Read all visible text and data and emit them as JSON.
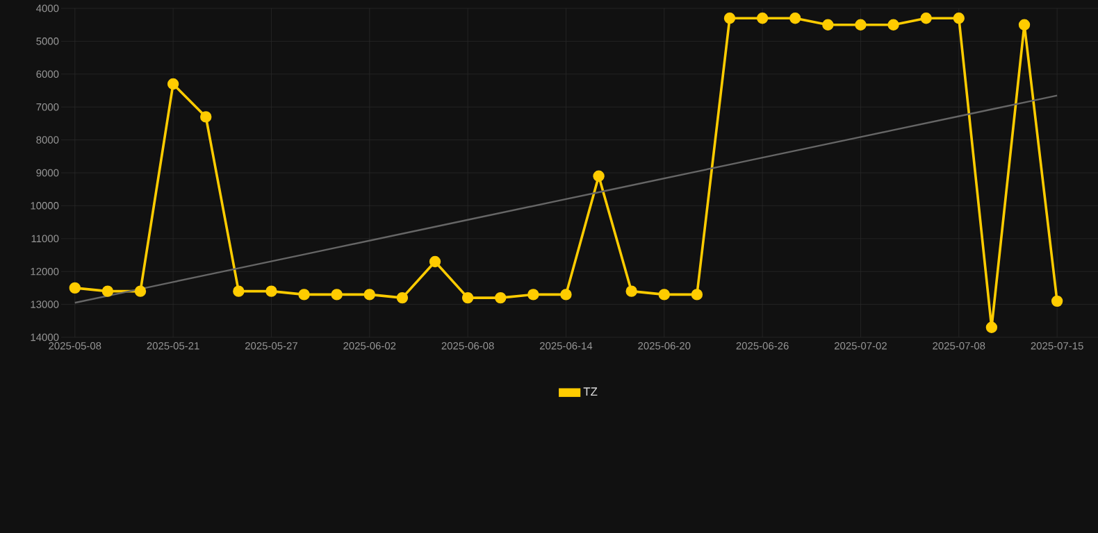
{
  "chart_data": {
    "type": "line",
    "categories": [
      "2025-05-08",
      null,
      null,
      "2025-05-21",
      null,
      null,
      "2025-05-27",
      null,
      null,
      "2025-06-02",
      null,
      null,
      "2025-06-08",
      null,
      null,
      "2025-06-14",
      null,
      null,
      "2025-06-20",
      null,
      null,
      "2025-06-26",
      null,
      null,
      "2025-07-02",
      null,
      null,
      "2025-07-08",
      null,
      null,
      "2025-07-15"
    ],
    "series": [
      {
        "name": "TZ",
        "color": "#ffcc00",
        "values": [
          12500,
          12600,
          12600,
          6300,
          7300,
          12600,
          12600,
          12700,
          12700,
          12700,
          12800,
          11700,
          12800,
          12800,
          12700,
          12700,
          9100,
          12600,
          12700,
          12700,
          4300,
          4300,
          4300,
          4500,
          4500,
          4500,
          4300,
          4300,
          13700,
          4500,
          12900
        ]
      },
      {
        "type": "line",
        "color": "#666666",
        "marker": "none",
        "values": [
          12950,
          12740,
          12530,
          12320,
          12110,
          11900,
          11690,
          11480,
          11270,
          11060,
          10850,
          10640,
          10430,
          10220,
          10010,
          9800,
          9590,
          9380,
          9170,
          8960,
          8750,
          8540,
          8330,
          8120,
          7910,
          7700,
          7490,
          7280,
          7070,
          6860,
          6650
        ]
      }
    ],
    "ylim": [
      14000,
      4000
    ],
    "yticks": [
      4000,
      5000,
      6000,
      7000,
      8000,
      9000,
      10000,
      11000,
      12000,
      13000,
      14000
    ],
    "grid": true,
    "legend": "bottom",
    "marker": "circle"
  }
}
